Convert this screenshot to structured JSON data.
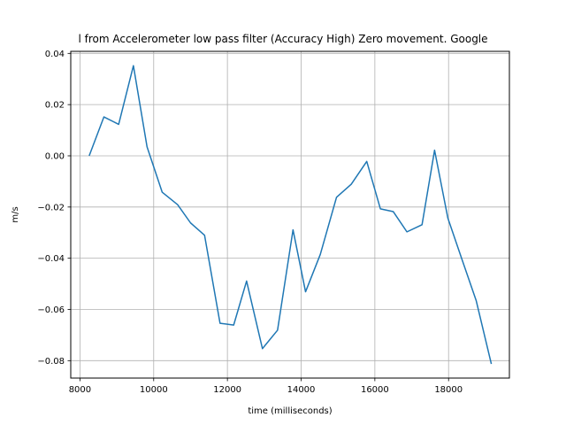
{
  "chart_data": {
    "type": "line",
    "title": "l from Accelerometer low pass filter (Accuracy High) Zero movement. Google",
    "xlabel": "time (milliseconds)",
    "ylabel": "m/s",
    "xlim": [
      7750,
      19650
    ],
    "ylim": [
      -0.0868,
      0.0408
    ],
    "x_ticks": [
      8000,
      10000,
      12000,
      14000,
      16000,
      18000
    ],
    "x_tick_labels": [
      "8000",
      "10000",
      "12000",
      "14000",
      "16000",
      "18000"
    ],
    "y_ticks": [
      -0.08,
      -0.06,
      -0.04,
      -0.02,
      0.0,
      0.02,
      0.04
    ],
    "y_tick_labels": [
      "−0.08",
      "−0.06",
      "−0.04",
      "−0.02",
      "0.00",
      "0.02",
      "0.04"
    ],
    "grid": true,
    "series": [
      {
        "color": "#1f77b4",
        "x": [
          8250,
          8650,
          9050,
          9450,
          9820,
          10230,
          10650,
          11000,
          11380,
          11800,
          12170,
          12520,
          12950,
          13360,
          13780,
          14120,
          14520,
          14960,
          15360,
          15780,
          16150,
          16500,
          16870,
          17280,
          17620,
          17980,
          18350,
          18750,
          19160
        ],
        "y": [
          0.0,
          0.0152,
          0.0123,
          0.0352,
          0.0035,
          -0.0142,
          -0.0191,
          -0.0262,
          -0.031,
          -0.0654,
          -0.0661,
          -0.0489,
          -0.0753,
          -0.0681,
          -0.0289,
          -0.0531,
          -0.0385,
          -0.0162,
          -0.0111,
          -0.0022,
          -0.0207,
          -0.0218,
          -0.0297,
          -0.0269,
          0.0022,
          -0.0243,
          -0.0399,
          -0.0566,
          -0.0813
        ]
      }
    ]
  }
}
